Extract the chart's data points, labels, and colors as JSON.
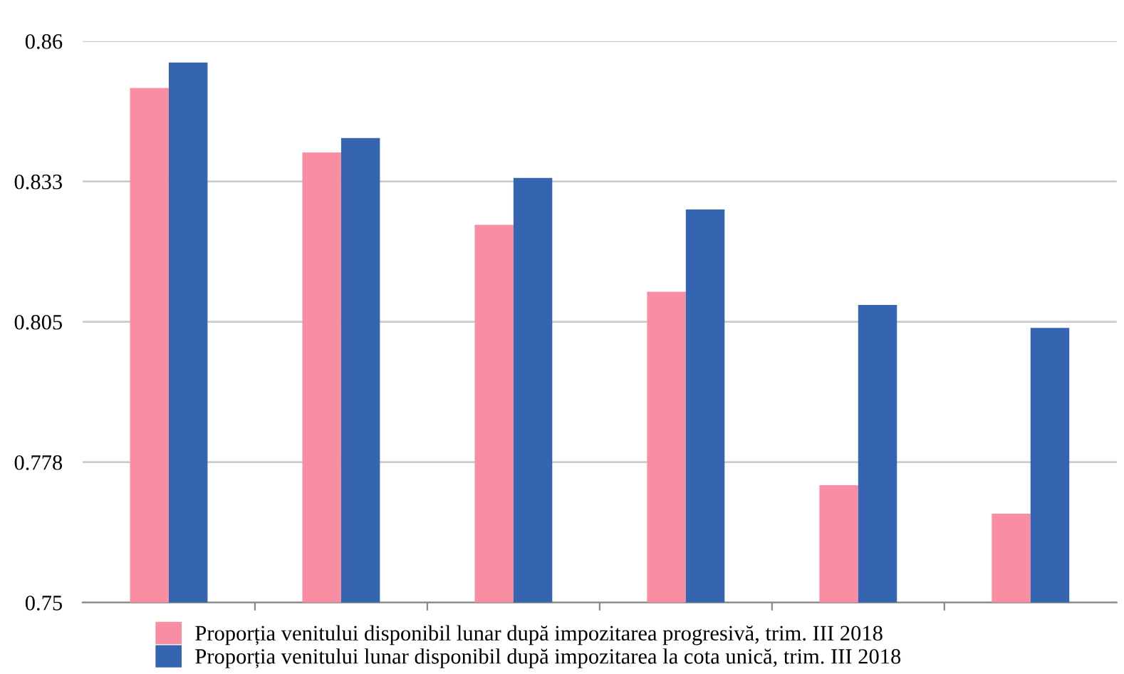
{
  "chart_data": {
    "type": "bar",
    "categories": [
      null,
      null,
      null,
      null,
      null,
      null
    ],
    "series": [
      {
        "name": "Proporția venitului disponibil lunar după impozitarea progresivă, trim. III 2018",
        "color": "#f98ea3",
        "values": [
          0.8508,
          0.8382,
          0.824,
          0.8109,
          0.773,
          0.7674
        ]
      },
      {
        "name": "Proporția venitului lunar disponibil după impozitarea la cota unică, trim. III 2018",
        "color": "#3564b0",
        "values": [
          0.8558,
          0.841,
          0.8332,
          0.827,
          0.8083,
          0.8038
        ]
      }
    ],
    "ylim": [
      0.75,
      0.86
    ],
    "yticks": [
      0.75,
      {
        "value": 0.7775,
        "label": "0.778"
      },
      0.805,
      {
        "value": 0.8325,
        "label": "0.833"
      },
      0.86
    ],
    "grid": "y",
    "legend": "bottom"
  }
}
